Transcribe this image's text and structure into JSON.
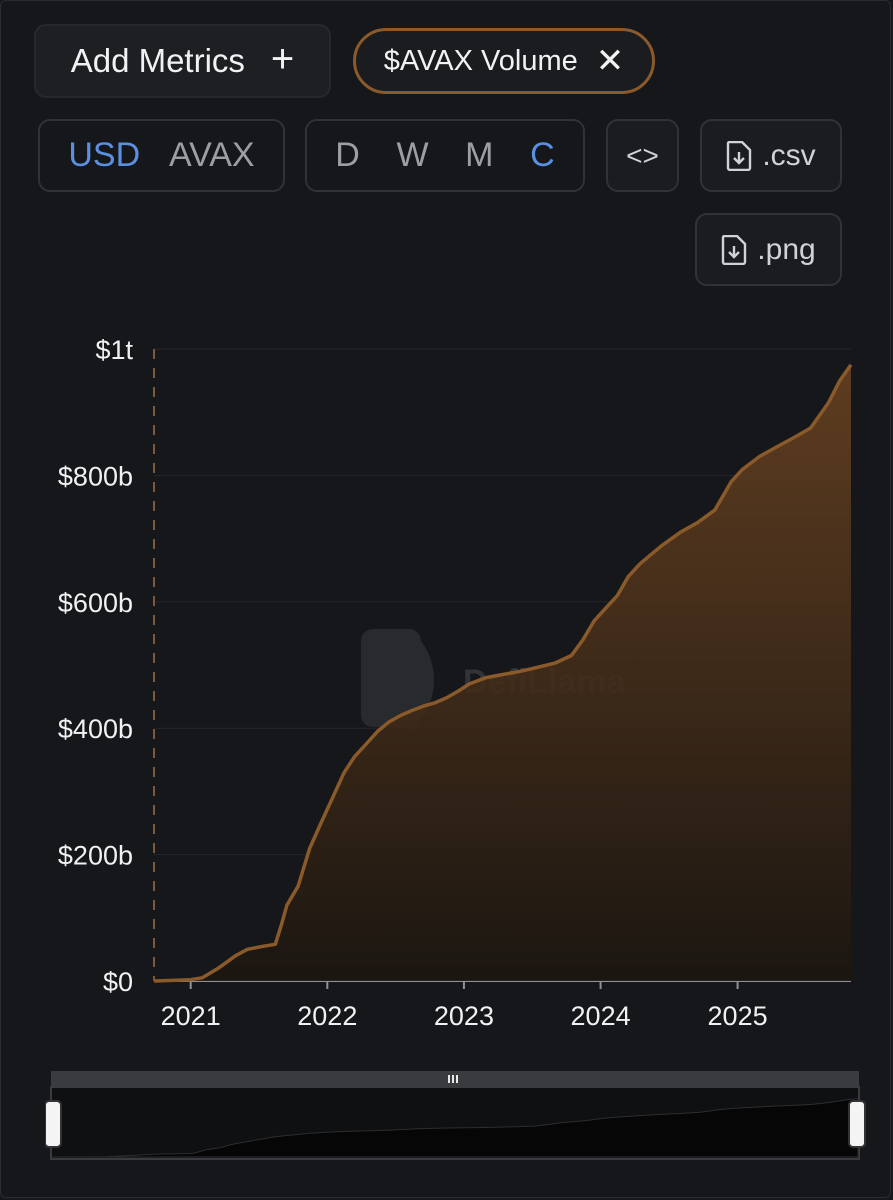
{
  "toolbar": {
    "add_metrics_label": "Add Metrics",
    "add_icon": "+",
    "metric_chip_label": "$AVAX Volume",
    "remove_icon": "✕",
    "currency": {
      "options": [
        "USD",
        "AVAX"
      ],
      "selected": "USD"
    },
    "period": {
      "options": [
        "D",
        "W",
        "M",
        "C"
      ],
      "selected": "C"
    },
    "embed_label": "<>",
    "csv_label": ".csv",
    "png_label": ".png"
  },
  "watermark": "DefiLlama",
  "colors": {
    "accent": "#5b8fe0",
    "series": "#8a5a2b",
    "background": "#16171a"
  },
  "chart_data": {
    "type": "area",
    "series": [
      {
        "x": [
          "2020-09-25",
          "2020-12-31",
          "2021-02-01",
          "2021-03-15",
          "2021-05-01",
          "2021-06-01",
          "2021-07-15",
          "2021-08-15",
          "2021-09-01",
          "2021-09-15",
          "2021-10-15",
          "2021-11-15",
          "2021-12-15",
          "2022-01-15",
          "2022-02-15",
          "2022-03-15",
          "2022-04-15",
          "2022-05-15",
          "2022-06-15",
          "2022-07-15",
          "2022-08-15",
          "2022-09-15",
          "2022-10-15",
          "2022-11-15",
          "2022-12-15",
          "2023-01-15",
          "2023-03-01",
          "2023-04-15",
          "2023-06-01",
          "2023-07-15",
          "2023-09-01",
          "2023-10-15",
          "2023-11-15",
          "2023-12-15",
          "2024-01-15",
          "2024-02-15",
          "2024-03-15",
          "2024-04-15",
          "2024-05-15",
          "2024-06-15",
          "2024-08-01",
          "2024-09-15",
          "2024-11-01",
          "2024-12-15",
          "2025-01-15",
          "2025-03-01",
          "2025-04-15",
          "2025-06-01",
          "2025-07-15",
          "2025-09-01",
          "2025-10-01",
          "2025-10-31"
        ],
        "y": [
          0,
          2,
          5,
          20,
          40,
          50,
          55,
          58,
          90,
          120,
          150,
          210,
          250,
          290,
          330,
          355,
          375,
          395,
          410,
          420,
          428,
          435,
          440,
          448,
          458,
          470,
          480,
          485,
          490,
          496,
          503,
          515,
          540,
          570,
          590,
          610,
          640,
          660,
          675,
          690,
          710,
          725,
          745,
          790,
          810,
          830,
          845,
          860,
          875,
          915,
          950,
          975
        ]
      }
    ],
    "xticks": [
      "2021",
      "2022",
      "2023",
      "2024",
      "2025"
    ],
    "yticks": [
      "$0",
      "$200b",
      "$400b",
      "$600b",
      "$800b",
      "$1t"
    ],
    "ylim": [
      0,
      1000
    ],
    "xlim": [
      "2020-09-25",
      "2025-10-31"
    ],
    "grid": true
  }
}
